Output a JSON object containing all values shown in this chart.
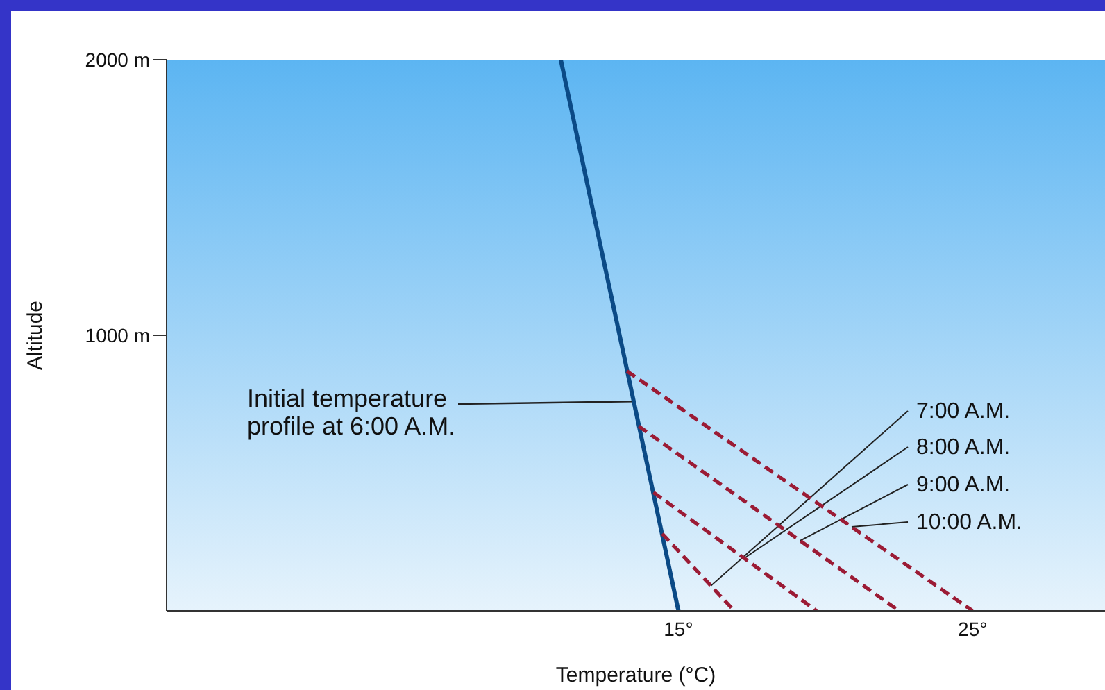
{
  "chart_data": {
    "type": "line",
    "xlabel": "Temperature (°C)",
    "ylabel": "Altitude",
    "xlim": [
      -2.4,
      29.5
    ],
    "ylim": [
      0,
      2000
    ],
    "xticks": [
      {
        "value": 15,
        "label": "15°"
      },
      {
        "value": 25,
        "label": "25°"
      }
    ],
    "yticks": [
      {
        "value": 1000,
        "label": "1000 m"
      },
      {
        "value": 2000,
        "label": "2000 m"
      }
    ],
    "grid": false,
    "legend": false,
    "marker": "none",
    "series": [
      {
        "name": "Initial temperature profile at 6:00 A.M.",
        "color": "#0b4a86",
        "line_style": "solid",
        "x": [
          11,
          15
        ],
        "values": [
          2000,
          0
        ]
      },
      {
        "name": "7:00 A.M.",
        "color": "#9b1b35",
        "line_style": "dashed",
        "x": [
          14.45,
          16.9
        ],
        "values": [
          280,
          0
        ]
      },
      {
        "name": "8:00 A.M.",
        "color": "#9b1b35",
        "line_style": "dashed",
        "x": [
          14.15,
          19.7
        ],
        "values": [
          430,
          0
        ]
      },
      {
        "name": "9:00 A.M.",
        "color": "#9b1b35",
        "line_style": "dashed",
        "x": [
          13.65,
          22.5
        ],
        "values": [
          670,
          0
        ]
      },
      {
        "name": "10:00 A.M.",
        "color": "#9b1b35",
        "line_style": "dashed",
        "x": [
          13.25,
          25
        ],
        "values": [
          870,
          0
        ]
      }
    ]
  }
}
